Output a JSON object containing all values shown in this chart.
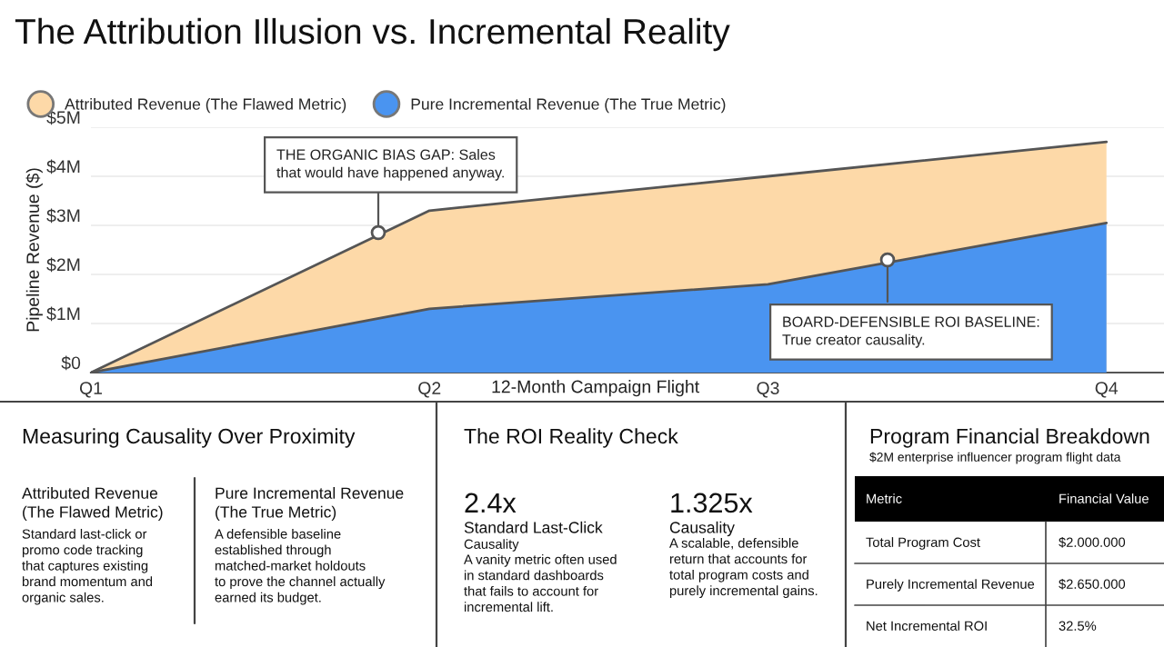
{
  "chart_data": {
    "type": "area",
    "title": "The Attribution Illusion vs. Incremental Reality",
    "xlabel": "12-Month Campaign Flight",
    "ylabel": "Pipeline Revenue ($)",
    "legend": "top left",
    "grid": "y",
    "categories": [
      "Q1",
      "Q2",
      "Q3",
      "Q4"
    ],
    "ylim": [
      0,
      5
    ],
    "yticks": [
      {
        "value": 0,
        "label": "$0"
      },
      {
        "value": 1,
        "label": "$1M"
      },
      {
        "value": 2,
        "label": "$2M"
      },
      {
        "value": 3,
        "label": "$3M"
      },
      {
        "value": 4,
        "label": "$4M"
      },
      {
        "value": 5,
        "label": "$5M"
      }
    ],
    "series": [
      {
        "name": "Attributed Revenue (The Flawed Metric)",
        "color": "#fdd9a8",
        "values": [
          0,
          3.3,
          4.0,
          4.7
        ]
      },
      {
        "name": "Pure Incremental Revenue (The True Metric)",
        "color": "#4a94f0",
        "values": [
          0,
          1.3,
          1.8,
          3.05
        ]
      }
    ],
    "annotations": [
      "THE ORGANIC BIAS GAP: Sales\nthat would have happened anyway.",
      "BOARD-DEFENSIBLE ROI BASELINE:\nTrue creator causality.",
      "Measuring Causality Over Proximity",
      "Attributed Revenue\n(The Flawed Metric)",
      "Standard last-click or\npromo code tracking\nthat captures existing\nbrand momentum and\norganic sales.",
      "Pure Incremental Revenue\n(The True Metric)",
      "A defensible baseline\nestablished through\nmatched-market holdouts\nto prove the channel actually\nearned its budget.",
      "The ROI Reality Check",
      "2.4x",
      "Standard Last-Click",
      "Causality",
      "A vanity metric often used\nin standard dashboards\nthat fails to account for\nincremental lift.",
      "1.325x",
      "Causality",
      "A scalable, defensible\nreturn that accounts for\ntotal program costs and\npurely incremental gains.",
      "Program Financial Breakdown",
      "$2M enterprise influencer program flight data",
      "Metric",
      "Financial Value",
      "Total Program Cost",
      "$2.000.000",
      "Purely Incremental Revenue",
      "$2.650.000",
      "Net Incremental ROI",
      "32.5%"
    ]
  }
}
